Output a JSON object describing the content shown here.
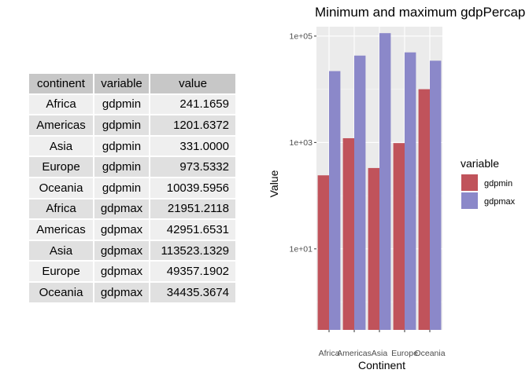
{
  "table": {
    "headers": [
      "continent",
      "variable",
      "value"
    ],
    "rows": [
      [
        "Africa",
        "gdpmin",
        "241.1659"
      ],
      [
        "Americas",
        "gdpmin",
        "1201.6372"
      ],
      [
        "Asia",
        "gdpmin",
        "331.0000"
      ],
      [
        "Europe",
        "gdpmin",
        "973.5332"
      ],
      [
        "Oceania",
        "gdpmin",
        "10039.5956"
      ],
      [
        "Africa",
        "gdpmax",
        "21951.2118"
      ],
      [
        "Americas",
        "gdpmax",
        "42951.6531"
      ],
      [
        "Asia",
        "gdpmax",
        "113523.1329"
      ],
      [
        "Europe",
        "gdpmax",
        "49357.1902"
      ],
      [
        "Oceania",
        "gdpmax",
        "34435.3674"
      ]
    ]
  },
  "chart_data": {
    "type": "bar",
    "title": "Minimum and maximum gdpPercap",
    "xlabel": "Continent",
    "ylabel": "Value",
    "y_scale": "log10",
    "ylim": [
      0.3,
      150000
    ],
    "y_ticks": [
      10,
      1000,
      100000
    ],
    "y_tick_labels": [
      "1e+01",
      "1e+03",
      "1e+05"
    ],
    "categories": [
      "Africa",
      "Americas",
      "Asia",
      "Europe",
      "Oceania"
    ],
    "series": [
      {
        "name": "gdpmin",
        "color": "#c0535b",
        "values": [
          241.1659,
          1201.6372,
          331.0,
          973.5332,
          10039.5956
        ]
      },
      {
        "name": "gdpmax",
        "color": "#8b88c9",
        "values": [
          21951.2118,
          42951.6531,
          113523.1329,
          49357.1902,
          34435.3674
        ]
      }
    ],
    "legend_title": "variable",
    "legend_position": "right",
    "grid": true,
    "panel_background": "#ebebeb"
  }
}
